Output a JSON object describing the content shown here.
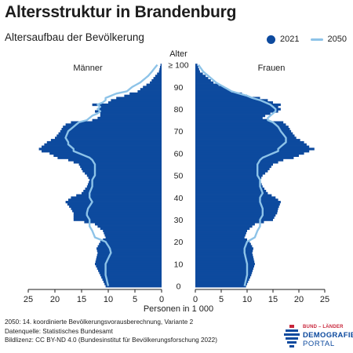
{
  "title": "Altersstruktur in Brandenburg",
  "subtitle": "Altersaufbau der Bevölkerung",
  "legend": {
    "series_2021": "2021",
    "series_2050": "2050"
  },
  "colors": {
    "bars_2021": "#0d4a9e",
    "line_2050": "#8dc3e8"
  },
  "chart_data": {
    "type": "area",
    "title": "Altersaufbau der Bevölkerung",
    "xlabel": "Personen in 1 000",
    "ylabel": "Alter",
    "left_label": "Männer",
    "right_label": "Frauen",
    "xlim": [
      0,
      25
    ],
    "ylim": [
      0,
      100
    ],
    "x_ticks": [
      "25",
      "20",
      "15",
      "10",
      "5",
      "0",
      "5",
      "10",
      "15",
      "20",
      "25"
    ],
    "y_ticks": [
      "0",
      "10",
      "20",
      "30",
      "40",
      "50",
      "60",
      "70",
      "80",
      "90",
      "≥ 100"
    ],
    "ages": [
      0,
      5,
      10,
      15,
      17,
      20,
      22,
      25,
      27,
      28,
      30,
      32,
      33,
      35,
      38,
      40,
      42,
      45,
      48,
      50,
      52,
      55,
      57,
      58,
      60,
      61,
      62,
      63,
      64,
      65,
      67,
      70,
      72,
      73,
      74,
      75,
      76,
      77,
      78,
      79,
      80,
      81,
      82,
      83,
      84,
      85,
      86,
      87,
      88,
      90,
      92,
      95,
      97,
      100
    ],
    "series": [
      {
        "name": "2021",
        "side": "Männer",
        "values": [
          10.5,
          11.5,
          12.5,
          12,
          12.2,
          11.5,
          10.5,
          11,
          12,
          12.5,
          16.5,
          16.5,
          16.5,
          17,
          18,
          17,
          15,
          14,
          13.5,
          14,
          14.8,
          15.5,
          17.5,
          19.5,
          21,
          22.5,
          23,
          22.5,
          22,
          21.5,
          20,
          19,
          18.5,
          18,
          17,
          13,
          12,
          11.5,
          11.5,
          12.5,
          12,
          11.5,
          13,
          10,
          9.5,
          8.5,
          7,
          6,
          4.5,
          3.5,
          2.2,
          1.2,
          0.5,
          0.2
        ]
      },
      {
        "name": "2021",
        "side": "Frauen",
        "values": [
          9.8,
          10.8,
          11.5,
          11,
          11.2,
          10.5,
          9.5,
          10,
          11,
          11.5,
          15,
          15.5,
          15.8,
          16,
          16.5,
          15.5,
          14,
          13,
          12.5,
          13,
          14,
          15,
          17,
          19,
          21,
          22,
          23,
          22,
          21.5,
          21,
          19.5,
          18.5,
          18,
          17.5,
          17,
          14,
          13,
          13.5,
          14.5,
          16,
          16.5,
          16,
          16.5,
          15,
          14,
          12.5,
          10,
          9,
          7,
          5.5,
          3.5,
          2,
          0.9,
          0.4
        ]
      },
      {
        "name": "2050",
        "side": "Männer",
        "values": [
          10,
          10.5,
          10.5,
          9.5,
          9.7,
          10.5,
          12.5,
          13,
          13.5,
          13.5,
          13.5,
          14,
          14,
          13.8,
          13,
          13.5,
          13.5,
          13,
          13,
          12.5,
          12.5,
          12.5,
          13,
          13.5,
          15.5,
          16.5,
          16.5,
          17,
          17.5,
          17.5,
          18,
          17.5,
          16.5,
          16,
          15.5,
          14,
          13.5,
          13,
          12,
          11.5,
          12,
          11.5,
          12,
          11,
          10.5,
          10.5,
          9.5,
          8.5,
          6.5,
          5.5,
          4,
          2.5,
          1.8,
          0.8
        ]
      },
      {
        "name": "2050",
        "side": "Frauen",
        "values": [
          9.5,
          10,
          10,
          9.5,
          9.5,
          10,
          11.5,
          12,
          12.5,
          12.5,
          12.5,
          13,
          13,
          13,
          12.5,
          12.5,
          13,
          12.5,
          12.5,
          12,
          12,
          12,
          12.5,
          13,
          15,
          16,
          16,
          16.5,
          17,
          17.5,
          17.5,
          16.5,
          16,
          15.5,
          15,
          14,
          14,
          14.5,
          15,
          15.5,
          15.5,
          15,
          14.5,
          13.5,
          12.5,
          11,
          10,
          8.5,
          7,
          5.5,
          4,
          2.5,
          1.5,
          0.6
        ]
      }
    ]
  },
  "footer": {
    "line1": "2050: 14. koordinierte Bevölkerungsvorausberechnung, Variante 2",
    "line2": "Datenquelle: Statistisches Bundesamt",
    "line3": "Bildlizenz: CC BY-ND 4.0 (Bundesinstitut für Bevölkerungsforschung 2022)"
  },
  "logo": {
    "line1": "BUND – LÄNDER",
    "line2": "DEMOGRAFIE",
    "line3": "PORTAL"
  }
}
